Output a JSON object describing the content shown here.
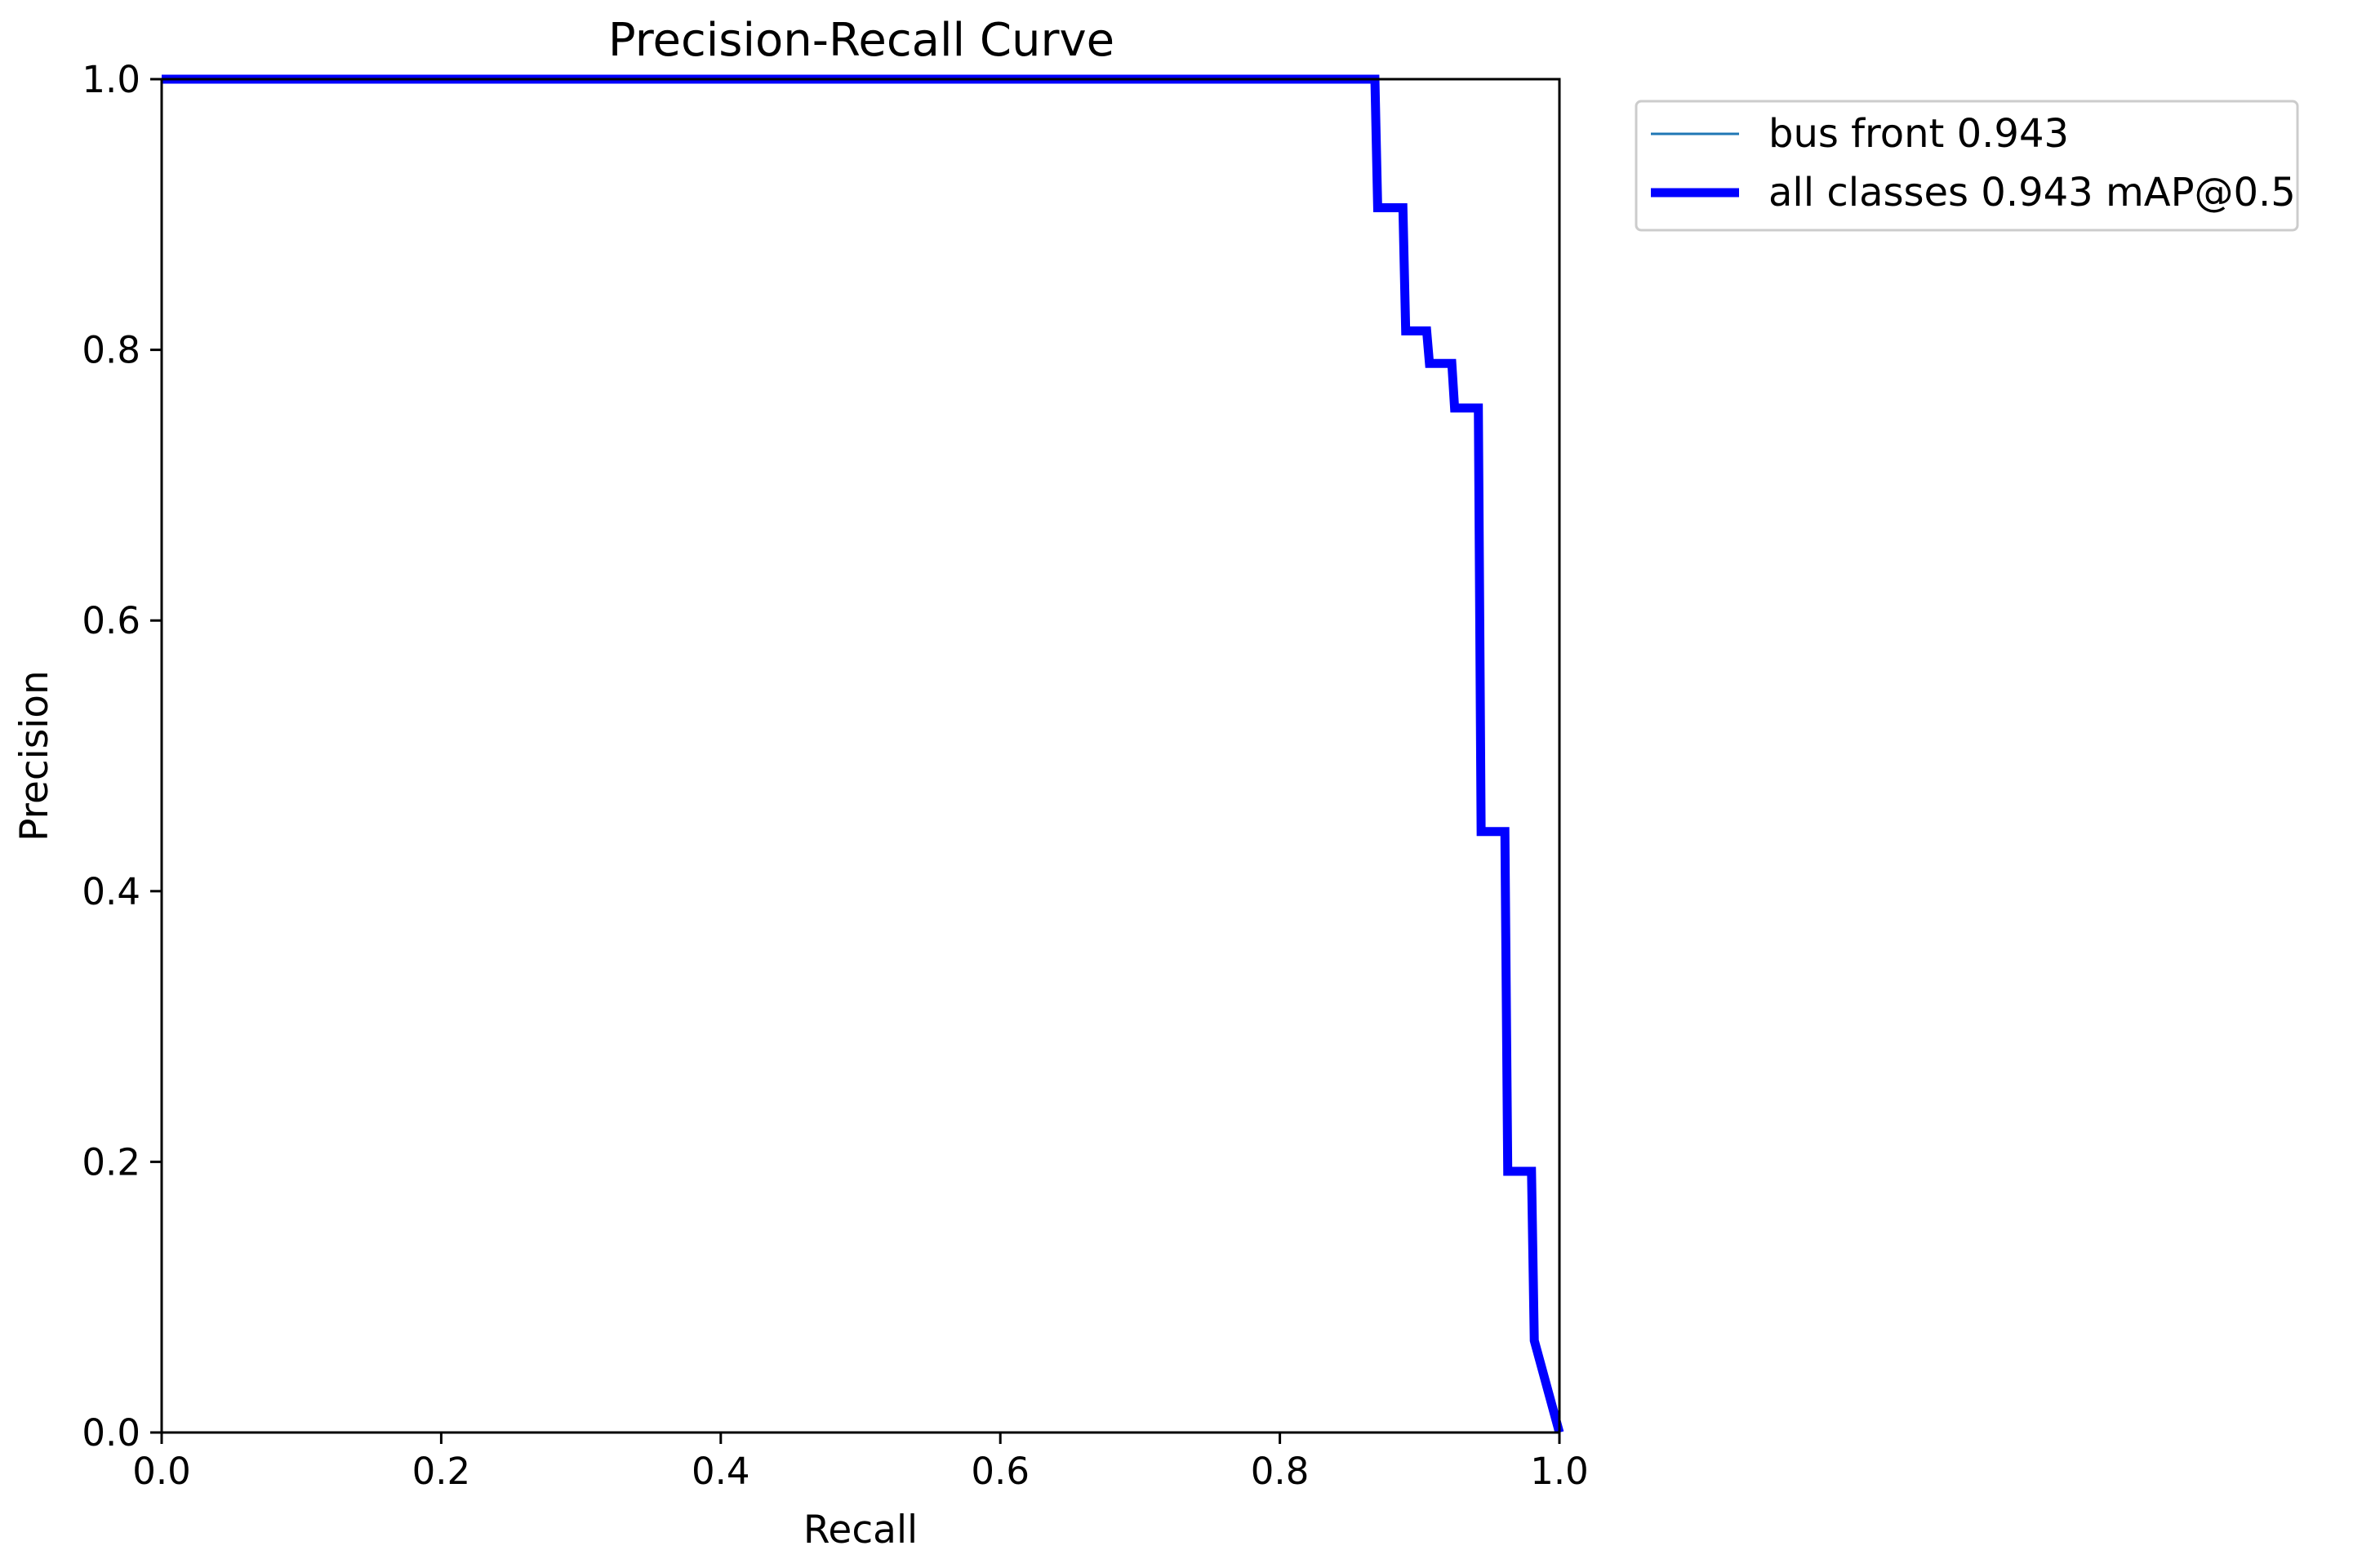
{
  "chart_data": {
    "type": "line",
    "title": "Precision-Recall Curve",
    "xlabel": "Recall",
    "ylabel": "Precision",
    "xlim": [
      0,
      1
    ],
    "ylim": [
      0,
      1
    ],
    "xticks": [
      "0.0",
      "0.2",
      "0.4",
      "0.6",
      "0.8",
      "1.0"
    ],
    "yticks": [
      "0.0",
      "0.2",
      "0.4",
      "0.6",
      "0.8",
      "1.0"
    ],
    "grid": false,
    "legend_position": "outside-top-right",
    "series": [
      {
        "name": "bus front 0.943",
        "color": "#1f77b4",
        "style": "thin",
        "x": [
          0.0,
          0.868,
          0.87,
          0.888,
          0.89,
          0.905,
          0.907,
          0.923,
          0.925,
          0.942,
          0.944,
          0.961,
          0.963,
          0.98,
          0.982,
          1.0
        ],
        "y": [
          1.0,
          1.0,
          0.905,
          0.905,
          0.814,
          0.814,
          0.79,
          0.79,
          0.757,
          0.757,
          0.444,
          0.444,
          0.193,
          0.193,
          0.068,
          0.0
        ]
      },
      {
        "name": "all classes 0.943 mAP@0.5",
        "color": "#0000ff",
        "style": "thick",
        "x": [
          0.0,
          0.868,
          0.87,
          0.888,
          0.89,
          0.905,
          0.907,
          0.923,
          0.925,
          0.942,
          0.944,
          0.961,
          0.963,
          0.98,
          0.982,
          1.0
        ],
        "y": [
          1.0,
          1.0,
          0.905,
          0.905,
          0.814,
          0.814,
          0.79,
          0.79,
          0.757,
          0.757,
          0.444,
          0.444,
          0.193,
          0.193,
          0.068,
          0.0
        ]
      }
    ]
  }
}
